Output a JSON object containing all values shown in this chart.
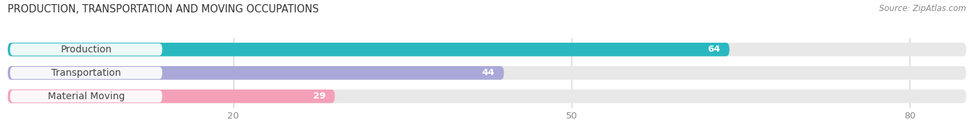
{
  "title": "PRODUCTION, TRANSPORTATION AND MOVING OCCUPATIONS",
  "source": "Source: ZipAtlas.com",
  "categories": [
    "Production",
    "Transportation",
    "Material Moving"
  ],
  "values": [
    64,
    44,
    29
  ],
  "bar_colors": [
    "#29b8c0",
    "#a9a8d8",
    "#f4a0b8"
  ],
  "track_color": "#e8e8e8",
  "xlim_max": 85,
  "xticks": [
    20,
    50,
    80
  ],
  "bar_height": 0.58,
  "background_color": "#ffffff",
  "plot_bg_color": "#ffffff",
  "title_fontsize": 10.5,
  "tick_fontsize": 9.5,
  "label_fontsize": 10,
  "value_fontsize": 9.5,
  "value_color": "#ffffff",
  "label_text_color": "#444444",
  "tick_color": "#888888",
  "source_fontsize": 8.5
}
